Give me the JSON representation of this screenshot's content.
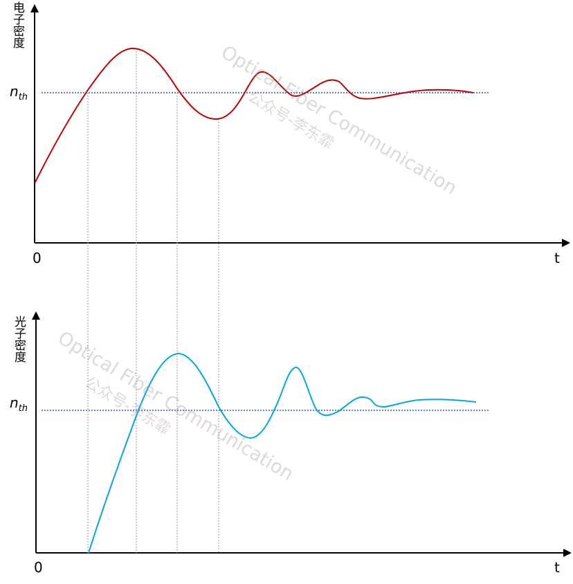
{
  "top_panel": {
    "y_label": "电子密度",
    "threshold_label_main": "n",
    "threshold_label_sub": "th",
    "origin_label": "0",
    "t_label": "t",
    "curve_color": "#c00000"
  },
  "bottom_panel": {
    "y_label": "光子密度",
    "threshold_label_main": "n",
    "threshold_label_sub": "th",
    "origin_label": "0",
    "t_label": "t",
    "curve_color": "#00a6e0"
  },
  "threshold_line_color": "#2f5597",
  "guide_line_color": "#9a9a9a",
  "watermarks": [
    {
      "line1": "Optical Fiber Communication",
      "line2": "公众号-李东霏"
    },
    {
      "line1": "Optical Fiber Communication",
      "line2": "公众号-李东霏"
    }
  ]
}
